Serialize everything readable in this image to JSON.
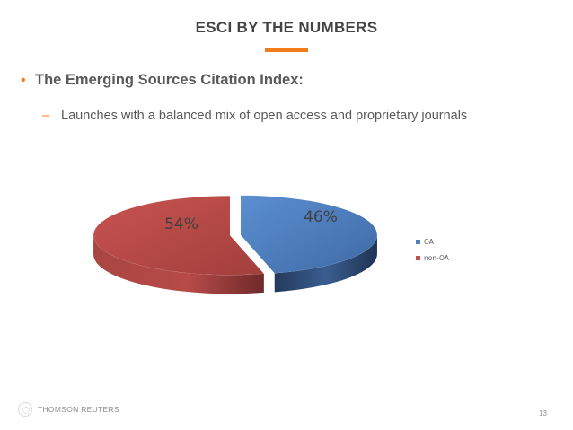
{
  "slide": {
    "title": "ESCI BY THE NUMBERS",
    "accent_color": "#f07c1b",
    "bullet": "•",
    "heading": "The Emerging Sources Citation Index:",
    "sub_dash": "–",
    "sub_text": "Launches with a balanced mix of open access and proprietary journals",
    "page_number": "13"
  },
  "footer": {
    "logo_text": "THOMSON REUTERS",
    "logo_icon": "thomson-reuters-logo-icon"
  },
  "chart_data": {
    "type": "pie",
    "style": "3d-exploded-pie",
    "categories": [
      "OA",
      "non-OA"
    ],
    "values": [
      46,
      54
    ],
    "value_labels": [
      "46%",
      "54%"
    ],
    "colors": [
      "#4f81bd",
      "#c0504d"
    ],
    "legend_position": "right",
    "title": ""
  }
}
